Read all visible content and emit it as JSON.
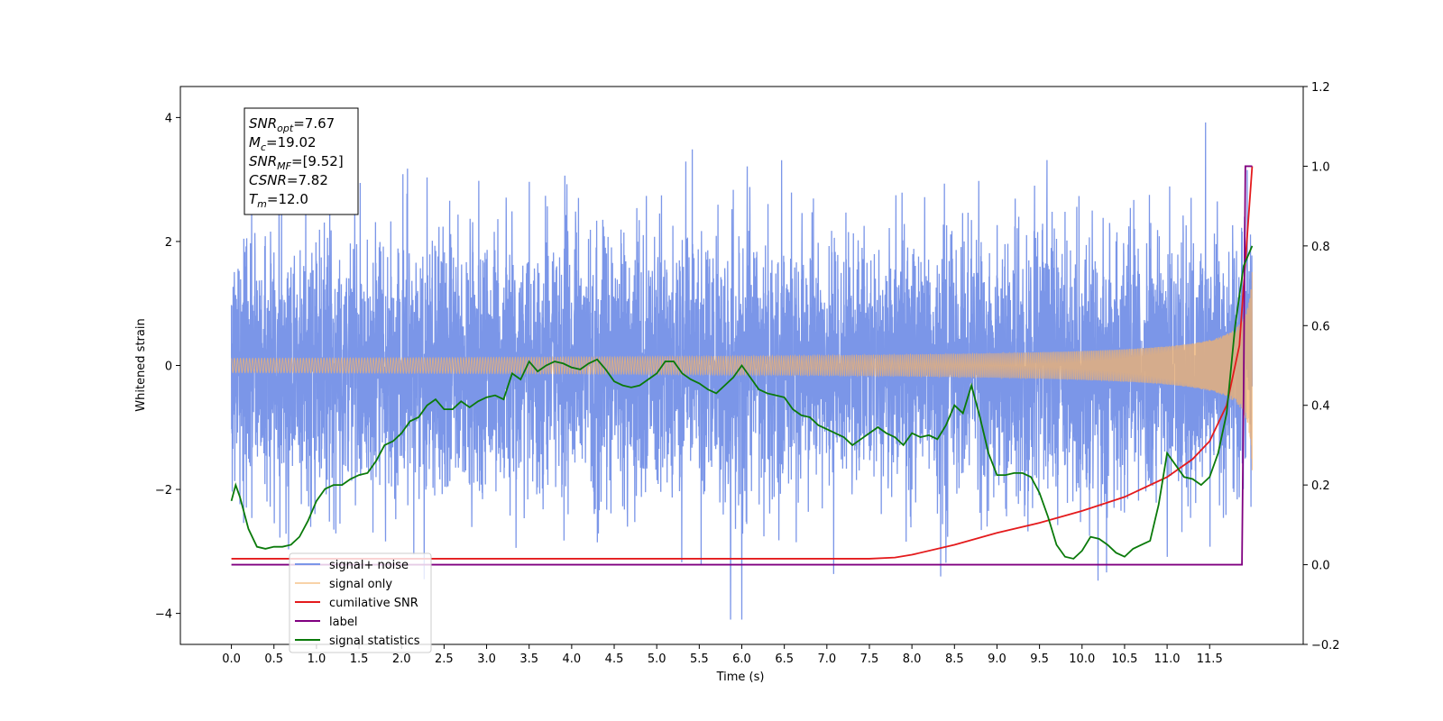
{
  "chart_data": {
    "type": "line",
    "xlabel": "Time (s)",
    "ylabel": "Whitened strain",
    "xlim": [
      -0.6,
      12.6
    ],
    "ylim": [
      -4.5,
      4.5
    ],
    "y2lim": [
      -0.2,
      1.2
    ],
    "x_ticks": [
      "0.0",
      "0.5",
      "1.0",
      "1.5",
      "2.0",
      "2.5",
      "3.0",
      "3.5",
      "4.0",
      "4.5",
      "5.0",
      "5.5",
      "6.0",
      "6.5",
      "7.0",
      "7.5",
      "8.0",
      "8.5",
      "9.0",
      "9.5",
      "10.0",
      "10.5",
      "11.0",
      "11.5"
    ],
    "y_ticks": [
      "4",
      "2",
      "0",
      "−2",
      "−4"
    ],
    "y2_ticks": [
      "1.2",
      "1.0",
      "0.8",
      "0.6",
      "0.4",
      "0.2",
      "0.0",
      "−0.2"
    ],
    "grid": false,
    "legend_position": "lower-left",
    "annotation": [
      {
        "base": "SNR",
        "sub": "opt",
        "value": "=7.67"
      },
      {
        "base": "M",
        "sub": "c",
        "value": "=19.02"
      },
      {
        "base": "SNR",
        "sub": "MF",
        "value": "=[9.52]"
      },
      {
        "base": "CSNR",
        "sub": "",
        "value": "=7.82"
      },
      {
        "base": "T",
        "sub": "m",
        "value": "=12.0"
      }
    ],
    "series": [
      {
        "name": "signal+ noise",
        "color": "#7b96e8",
        "axis": "left",
        "style": "noise",
        "t_range": [
          0.0,
          12.0
        ],
        "noise_std": 1.0,
        "visible_range": [
          -4.1,
          4.1
        ]
      },
      {
        "name": "signal only",
        "color": "#f3b36e",
        "axis": "left",
        "style": "chirp",
        "t_range": [
          0.0,
          12.0
        ],
        "end_amplitude": 1.7
      },
      {
        "name": "cumilative SNR",
        "color": "#e41a1c",
        "axis": "right",
        "x": [
          0.0,
          1.0,
          2.0,
          3.0,
          4.0,
          5.0,
          6.0,
          7.0,
          7.5,
          7.8,
          8.0,
          8.5,
          9.0,
          9.5,
          10.0,
          10.5,
          11.0,
          11.3,
          11.5,
          11.7,
          11.85,
          12.0
        ],
        "y": [
          0.015,
          0.015,
          0.015,
          0.015,
          0.015,
          0.015,
          0.015,
          0.015,
          0.015,
          0.018,
          0.025,
          0.05,
          0.08,
          0.105,
          0.135,
          0.17,
          0.22,
          0.265,
          0.31,
          0.4,
          0.55,
          1.0
        ]
      },
      {
        "name": "label",
        "color": "#800080",
        "axis": "right",
        "x": [
          0.0,
          11.88,
          11.9,
          11.92,
          12.0
        ],
        "y": [
          0.0,
          0.0,
          0.45,
          1.0,
          1.0
        ]
      },
      {
        "name": "signal statistics",
        "color": "#0a7a0a",
        "axis": "right",
        "x": [
          0.0,
          0.05,
          0.1,
          0.2,
          0.3,
          0.4,
          0.5,
          0.6,
          0.7,
          0.8,
          0.9,
          1.0,
          1.1,
          1.2,
          1.3,
          1.4,
          1.5,
          1.6,
          1.7,
          1.8,
          1.9,
          2.0,
          2.1,
          2.2,
          2.3,
          2.4,
          2.5,
          2.6,
          2.7,
          2.8,
          2.9,
          3.0,
          3.1,
          3.2,
          3.3,
          3.4,
          3.5,
          3.6,
          3.7,
          3.8,
          3.9,
          4.0,
          4.1,
          4.2,
          4.3,
          4.4,
          4.5,
          4.6,
          4.7,
          4.8,
          4.9,
          5.0,
          5.1,
          5.2,
          5.3,
          5.4,
          5.5,
          5.6,
          5.7,
          5.8,
          5.9,
          6.0,
          6.1,
          6.2,
          6.3,
          6.4,
          6.5,
          6.6,
          6.7,
          6.8,
          6.9,
          7.0,
          7.1,
          7.2,
          7.3,
          7.4,
          7.5,
          7.6,
          7.7,
          7.8,
          7.9,
          8.0,
          8.1,
          8.2,
          8.3,
          8.4,
          8.5,
          8.6,
          8.7,
          8.8,
          8.9,
          9.0,
          9.1,
          9.2,
          9.3,
          9.4,
          9.5,
          9.6,
          9.7,
          9.8,
          9.9,
          10.0,
          10.1,
          10.2,
          10.3,
          10.4,
          10.5,
          10.6,
          10.7,
          10.8,
          10.9,
          11.0,
          11.1,
          11.2,
          11.3,
          11.4,
          11.5,
          11.6,
          11.7,
          11.8,
          11.9,
          12.0
        ],
        "y": [
          0.16,
          0.2,
          0.17,
          0.09,
          0.045,
          0.04,
          0.045,
          0.045,
          0.05,
          0.07,
          0.11,
          0.16,
          0.19,
          0.2,
          0.2,
          0.215,
          0.225,
          0.23,
          0.26,
          0.3,
          0.31,
          0.33,
          0.36,
          0.37,
          0.4,
          0.415,
          0.39,
          0.39,
          0.41,
          0.395,
          0.41,
          0.42,
          0.425,
          0.415,
          0.48,
          0.465,
          0.51,
          0.485,
          0.5,
          0.51,
          0.505,
          0.495,
          0.49,
          0.505,
          0.515,
          0.49,
          0.46,
          0.45,
          0.445,
          0.45,
          0.465,
          0.48,
          0.51,
          0.51,
          0.48,
          0.465,
          0.455,
          0.44,
          0.43,
          0.45,
          0.47,
          0.5,
          0.47,
          0.44,
          0.43,
          0.425,
          0.42,
          0.39,
          0.375,
          0.37,
          0.35,
          0.34,
          0.33,
          0.32,
          0.3,
          0.315,
          0.33,
          0.345,
          0.33,
          0.32,
          0.3,
          0.33,
          0.32,
          0.325,
          0.315,
          0.35,
          0.4,
          0.38,
          0.45,
          0.37,
          0.28,
          0.225,
          0.225,
          0.23,
          0.23,
          0.22,
          0.18,
          0.12,
          0.05,
          0.02,
          0.015,
          0.035,
          0.07,
          0.065,
          0.05,
          0.03,
          0.02,
          0.04,
          0.05,
          0.06,
          0.15,
          0.28,
          0.25,
          0.22,
          0.215,
          0.2,
          0.22,
          0.28,
          0.38,
          0.6,
          0.75,
          0.8
        ]
      }
    ]
  }
}
